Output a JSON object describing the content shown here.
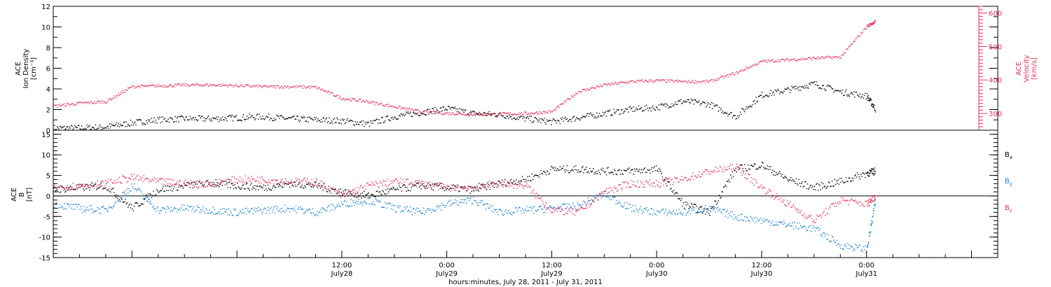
{
  "colors": {
    "black": "#000000",
    "pink": "#e8315a",
    "blue": "#1a7fd6"
  },
  "x_axis": {
    "start": "2011-07-27T03:00",
    "end": "2011-07-31T15:00",
    "title": "hours:minutes, July 28, 2011 - July 31, 2011",
    "ticks": [
      {
        "time": "2011-07-28T12:00",
        "line1": "12:00",
        "line2": "July28"
      },
      {
        "time": "2011-07-29T00:00",
        "line1": "0:00",
        "line2": "July29"
      },
      {
        "time": "2011-07-29T12:00",
        "line1": "12:00",
        "line2": "July29"
      },
      {
        "time": "2011-07-30T00:00",
        "line1": "0:00",
        "line2": "July30"
      },
      {
        "time": "2011-07-30T12:00",
        "line1": "12:00",
        "line2": "July30"
      },
      {
        "time": "2011-07-31T00:00",
        "line1": "0:00",
        "line2": "July31"
      }
    ]
  },
  "chart_data": [
    {
      "type": "scatter",
      "panel": "top",
      "left_axis": {
        "label_lines": [
          "ACE",
          "Ion Density",
          "[cm⁻³]"
        ],
        "ylim": [
          0,
          12
        ],
        "ticks": [
          "0",
          "2",
          "4",
          "6",
          "8",
          "10",
          "12"
        ]
      },
      "right_axis": {
        "label_lines": [
          "ACE",
          "Velocity",
          "[km/s]"
        ],
        "ylim": [
          250,
          620
        ],
        "ticks": [
          "300",
          "400",
          "500",
          "600"
        ]
      },
      "series": [
        {
          "axis": "left",
          "color": "black",
          "x": [
            "2011-07-27T03:00",
            "2011-07-27T06:00",
            "2011-07-27T09:00",
            "2011-07-27T12:00",
            "2011-07-27T15:00",
            "2011-07-27T18:00",
            "2011-07-27T21:00",
            "2011-07-28T00:00",
            "2011-07-28T03:00",
            "2011-07-28T06:00",
            "2011-07-28T09:00",
            "2011-07-28T12:00",
            "2011-07-28T15:00",
            "2011-07-28T18:00",
            "2011-07-28T21:00",
            "2011-07-29T00:00",
            "2011-07-29T03:00",
            "2011-07-29T06:00",
            "2011-07-29T09:00",
            "2011-07-29T12:00",
            "2011-07-29T15:00",
            "2011-07-29T18:00",
            "2011-07-29T21:00",
            "2011-07-30T00:00",
            "2011-07-30T03:00",
            "2011-07-30T06:00",
            "2011-07-30T09:00",
            "2011-07-30T12:00",
            "2011-07-30T15:00",
            "2011-07-30T18:00",
            "2011-07-30T21:00",
            "2011-07-31T00:00",
            "2011-07-31T01:00"
          ],
          "values": [
            0.2,
            0.2,
            0.3,
            0.7,
            1.0,
            1.1,
            1.1,
            1.2,
            1.3,
            1.1,
            1.0,
            0.9,
            0.6,
            1.3,
            1.7,
            2.1,
            1.6,
            1.5,
            1.1,
            0.8,
            1.2,
            1.6,
            2.0,
            2.2,
            2.8,
            2.5,
            1.3,
            3.4,
            3.9,
            4.5,
            3.7,
            3.3,
            2.0
          ]
        },
        {
          "axis": "right",
          "color": "pink",
          "x": [
            "2011-07-27T03:00",
            "2011-07-27T06:00",
            "2011-07-27T09:00",
            "2011-07-27T12:00",
            "2011-07-27T15:00",
            "2011-07-27T18:00",
            "2011-07-27T21:00",
            "2011-07-28T00:00",
            "2011-07-28T03:00",
            "2011-07-28T06:00",
            "2011-07-28T09:00",
            "2011-07-28T12:00",
            "2011-07-28T15:00",
            "2011-07-28T18:00",
            "2011-07-28T21:00",
            "2011-07-29T00:00",
            "2011-07-29T03:00",
            "2011-07-29T06:00",
            "2011-07-29T09:00",
            "2011-07-29T12:00",
            "2011-07-29T15:00",
            "2011-07-29T18:00",
            "2011-07-29T21:00",
            "2011-07-30T00:00",
            "2011-07-30T03:00",
            "2011-07-30T06:00",
            "2011-07-30T09:00",
            "2011-07-30T12:00",
            "2011-07-30T15:00",
            "2011-07-30T18:00",
            "2011-07-30T21:00",
            "2011-07-31T00:00",
            "2011-07-31T01:00"
          ],
          "values": [
            322,
            330,
            335,
            380,
            382,
            385,
            385,
            383,
            380,
            380,
            378,
            345,
            335,
            320,
            305,
            300,
            298,
            298,
            300,
            305,
            365,
            385,
            395,
            398,
            395,
            395,
            420,
            455,
            460,
            465,
            468,
            560,
            575
          ]
        }
      ]
    },
    {
      "type": "scatter",
      "panel": "bottom",
      "left_axis": {
        "label_lines": [
          "ACE",
          "B",
          "[nT]"
        ],
        "ylim": [
          -15,
          16
        ],
        "ticks": [
          "-15",
          "-10",
          "-5",
          "0",
          "5",
          "10",
          "15"
        ]
      },
      "legend": {
        "placement": "right",
        "entries": [
          {
            "label": "B",
            "sub": "x",
            "color": "black"
          },
          {
            "label": "B",
            "sub": "y",
            "color": "blue"
          },
          {
            "label": "B",
            "sub": "z",
            "color": "pink"
          }
        ]
      },
      "series": [
        {
          "label": "B",
          "sub": "x",
          "color": "black",
          "x": [
            "2011-07-27T03:00",
            "2011-07-27T06:00",
            "2011-07-27T09:00",
            "2011-07-27T12:00",
            "2011-07-27T15:00",
            "2011-07-27T18:00",
            "2011-07-27T21:00",
            "2011-07-28T00:00",
            "2011-07-28T03:00",
            "2011-07-28T06:00",
            "2011-07-28T09:00",
            "2011-07-28T12:00",
            "2011-07-28T15:00",
            "2011-07-28T18:00",
            "2011-07-28T21:00",
            "2011-07-29T00:00",
            "2011-07-29T03:00",
            "2011-07-29T06:00",
            "2011-07-29T09:00",
            "2011-07-29T12:00",
            "2011-07-29T15:00",
            "2011-07-29T18:00",
            "2011-07-29T21:00",
            "2011-07-30T00:00",
            "2011-07-30T03:00",
            "2011-07-30T06:00",
            "2011-07-30T09:00",
            "2011-07-30T12:00",
            "2011-07-30T15:00",
            "2011-07-30T18:00",
            "2011-07-30T21:00",
            "2011-07-31T00:00",
            "2011-07-31T01:00"
          ],
          "values": [
            1.5,
            2.0,
            2.5,
            -3.0,
            1.5,
            2.5,
            3.0,
            2.5,
            2.0,
            3.0,
            2.5,
            1.0,
            0.0,
            1.5,
            2.5,
            2.0,
            1.5,
            3.0,
            4.0,
            6.5,
            6.5,
            6.0,
            6.0,
            6.5,
            -2.0,
            -4.0,
            6.5,
            7.5,
            4.0,
            2.0,
            3.5,
            5.5,
            6.0
          ]
        },
        {
          "label": "B",
          "sub": "y",
          "color": "blue",
          "x": [
            "2011-07-27T03:00",
            "2011-07-27T06:00",
            "2011-07-27T09:00",
            "2011-07-27T12:00",
            "2011-07-27T15:00",
            "2011-07-27T18:00",
            "2011-07-27T21:00",
            "2011-07-28T00:00",
            "2011-07-28T03:00",
            "2011-07-28T06:00",
            "2011-07-28T09:00",
            "2011-07-28T12:00",
            "2011-07-28T15:00",
            "2011-07-28T18:00",
            "2011-07-28T21:00",
            "2011-07-29T00:00",
            "2011-07-29T03:00",
            "2011-07-29T06:00",
            "2011-07-29T09:00",
            "2011-07-29T12:00",
            "2011-07-29T15:00",
            "2011-07-29T18:00",
            "2011-07-29T21:00",
            "2011-07-30T00:00",
            "2011-07-30T03:00",
            "2011-07-30T06:00",
            "2011-07-30T09:00",
            "2011-07-30T12:00",
            "2011-07-30T15:00",
            "2011-07-30T18:00",
            "2011-07-30T21:00",
            "2011-07-31T00:00",
            "2011-07-31T01:00"
          ],
          "values": [
            -2.0,
            -3.0,
            -3.5,
            2.5,
            -3.5,
            -3.0,
            -3.5,
            -4.0,
            -3.5,
            -3.0,
            -4.0,
            -2.0,
            -1.0,
            -3.0,
            -4.0,
            -2.0,
            -1.0,
            -4.0,
            -3.5,
            -3.0,
            -2.5,
            0.5,
            -3.0,
            -4.0,
            -4.0,
            -3.0,
            -5.0,
            -6.0,
            -7.0,
            -8.0,
            -12.0,
            -13.0,
            -1.0
          ]
        },
        {
          "label": "B",
          "sub": "z",
          "color": "pink",
          "x": [
            "2011-07-27T03:00",
            "2011-07-27T06:00",
            "2011-07-27T09:00",
            "2011-07-27T12:00",
            "2011-07-27T15:00",
            "2011-07-27T18:00",
            "2011-07-27T21:00",
            "2011-07-28T00:00",
            "2011-07-28T03:00",
            "2011-07-28T06:00",
            "2011-07-28T09:00",
            "2011-07-28T12:00",
            "2011-07-28T15:00",
            "2011-07-28T18:00",
            "2011-07-28T21:00",
            "2011-07-29T00:00",
            "2011-07-29T03:00",
            "2011-07-29T06:00",
            "2011-07-29T09:00",
            "2011-07-29T12:00",
            "2011-07-29T15:00",
            "2011-07-29T18:00",
            "2011-07-29T21:00",
            "2011-07-30T00:00",
            "2011-07-30T03:00",
            "2011-07-30T06:00",
            "2011-07-30T09:00",
            "2011-07-30T12:00",
            "2011-07-30T15:00",
            "2011-07-30T18:00",
            "2011-07-30T21:00",
            "2011-07-31T00:00",
            "2011-07-31T01:00"
          ],
          "values": [
            2.0,
            2.5,
            3.0,
            4.5,
            3.5,
            3.0,
            3.0,
            4.0,
            4.0,
            3.5,
            3.5,
            0.0,
            2.5,
            3.5,
            3.0,
            2.0,
            2.0,
            3.0,
            2.5,
            -3.5,
            -4.0,
            1.0,
            3.0,
            3.0,
            4.0,
            6.0,
            7.0,
            2.0,
            -2.0,
            -6.0,
            -1.0,
            -2.0,
            0.0
          ]
        }
      ]
    }
  ]
}
